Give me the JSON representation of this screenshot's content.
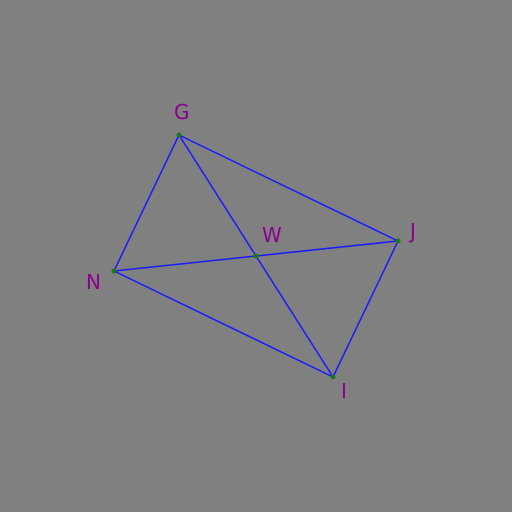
{
  "colors": {
    "background": "#808080",
    "edge": "#1a1aff",
    "vertex": "#1a7a1a",
    "label": "#8b008b"
  },
  "points": {
    "G": {
      "label": "G"
    },
    "J": {
      "label": "J"
    },
    "I": {
      "label": "I"
    },
    "N": {
      "label": "N"
    },
    "W": {
      "label": "W"
    }
  },
  "segments": [
    [
      "G",
      "J"
    ],
    [
      "J",
      "I"
    ],
    [
      "I",
      "N"
    ],
    [
      "N",
      "G"
    ],
    [
      "G",
      "I"
    ],
    [
      "N",
      "J"
    ]
  ]
}
